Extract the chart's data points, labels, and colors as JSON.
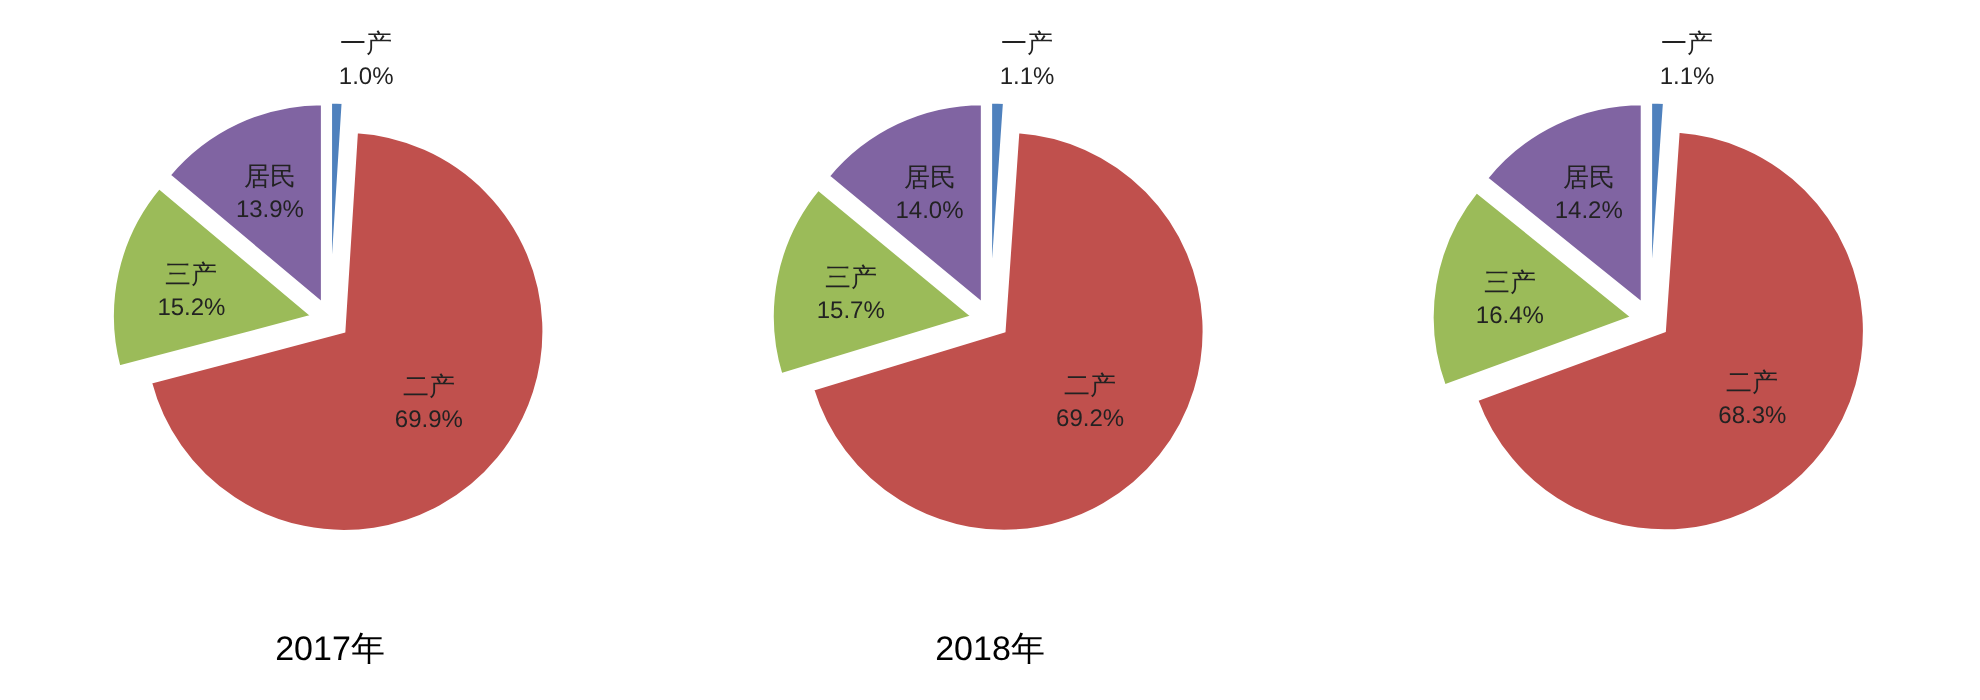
{
  "chart_data": [
    {
      "type": "pie",
      "title": "2017年",
      "categories": [
        "一产",
        "二产",
        "三产",
        "居民"
      ],
      "values": [
        1.0,
        69.9,
        15.2,
        13.9
      ],
      "value_labels": [
        "1.0%",
        "69.9%",
        "15.2%",
        "13.9%"
      ],
      "colors": [
        "#4f81bd",
        "#c0504d",
        "#9bbb59",
        "#8064a2"
      ]
    },
    {
      "type": "pie",
      "title": "2018年",
      "categories": [
        "一产",
        "二产",
        "三产",
        "居民"
      ],
      "values": [
        1.1,
        69.2,
        15.7,
        14.0
      ],
      "value_labels": [
        "1.1%",
        "69.2%",
        "15.7%",
        "14.0%"
      ],
      "colors": [
        "#4f81bd",
        "#c0504d",
        "#9bbb59",
        "#8064a2"
      ]
    },
    {
      "type": "pie",
      "categories": [
        "一产",
        "二产",
        "三产",
        "居民"
      ],
      "values": [
        1.1,
        68.3,
        16.4,
        14.2
      ],
      "value_labels": [
        "1.1%",
        "68.3%",
        "16.4%",
        "14.2%"
      ],
      "colors": [
        "#4f81bd",
        "#c0504d",
        "#9bbb59",
        "#8064a2"
      ]
    }
  ]
}
